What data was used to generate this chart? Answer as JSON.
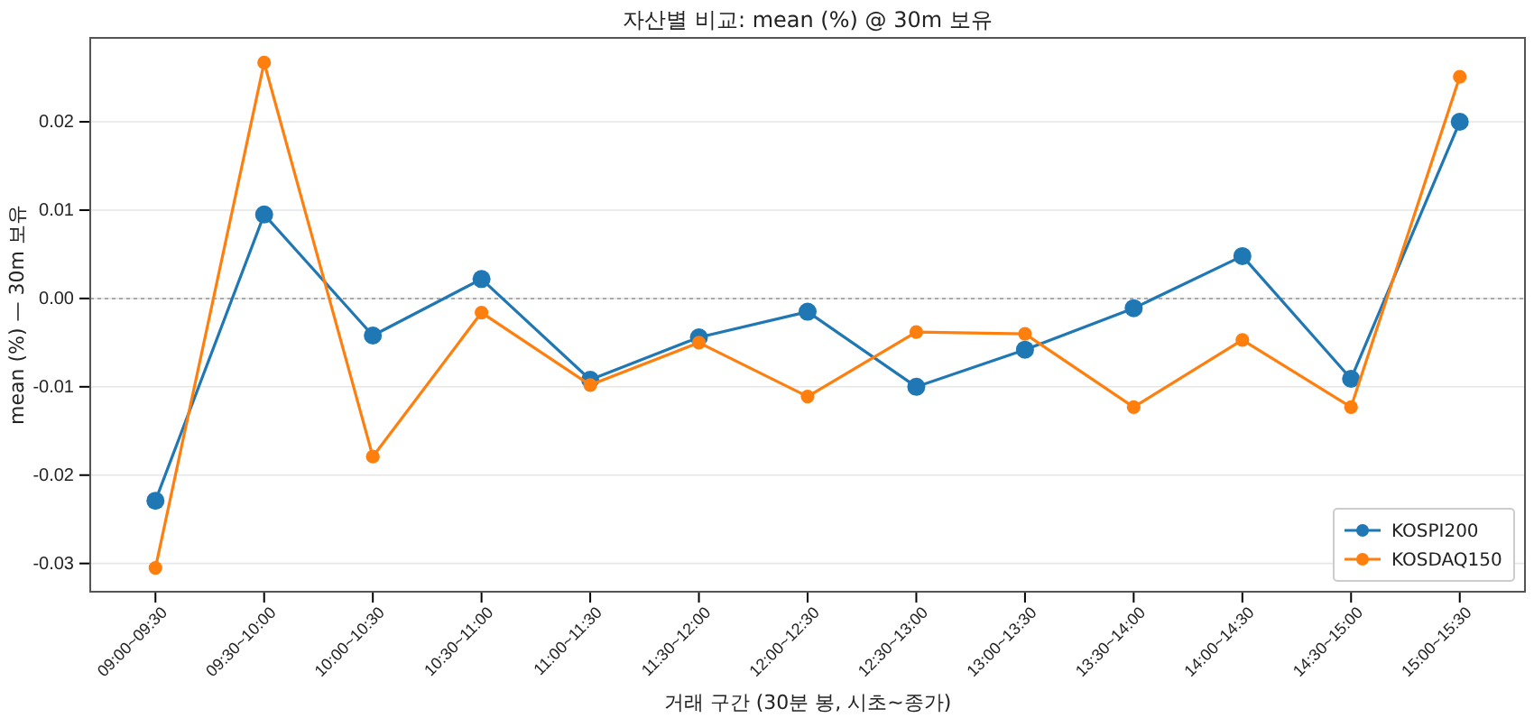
{
  "chart_data": {
    "type": "line",
    "title": "자산별 비교: mean (%) @ 30m 보유",
    "xlabel": "거래 구간 (30분 봉, 시초~종가)",
    "ylabel": "mean (%) — 30m 보유",
    "categories": [
      "09:00~09:30",
      "09:30~10:00",
      "10:00~10:30",
      "10:30~11:00",
      "11:00~11:30",
      "11:30~12:00",
      "12:00~12:30",
      "12:30~13:00",
      "13:00~13:30",
      "13:30~14:00",
      "14:00~14:30",
      "14:30~15:00",
      "15:00~15:30"
    ],
    "series": [
      {
        "name": "KOSPI200",
        "color": "#1f77b4",
        "values": [
          -0.0229,
          0.0095,
          -0.0042,
          0.0022,
          -0.0092,
          -0.0044,
          -0.0015,
          -0.01,
          -0.0058,
          -0.0011,
          0.0048,
          -0.0091,
          0.02
        ]
      },
      {
        "name": "KOSDAQ150",
        "color": "#ff7f0e",
        "values": [
          -0.0305,
          0.0267,
          -0.0179,
          -0.0016,
          -0.0098,
          -0.005,
          -0.0111,
          -0.0038,
          -0.004,
          -0.0123,
          -0.0047,
          -0.0123,
          0.0251
        ]
      }
    ],
    "ylim": [
      -0.0332,
      0.0295
    ],
    "yticks": [
      {
        "value": -0.03,
        "label": "-0.03"
      },
      {
        "value": -0.02,
        "label": "-0.02"
      },
      {
        "value": -0.01,
        "label": "-0.01"
      },
      {
        "value": 0,
        "label": "0.00"
      },
      {
        "value": 0.01,
        "label": "0.01"
      },
      {
        "value": 0.02,
        "label": "0.02"
      }
    ],
    "ref_lines": [
      {
        "axis": "y",
        "value": 0,
        "color": "#aaaaaa",
        "line_style": "dotted"
      }
    ],
    "grid": "y",
    "legend": "bottom right",
    "marker": "circle",
    "line_style": "solid"
  }
}
